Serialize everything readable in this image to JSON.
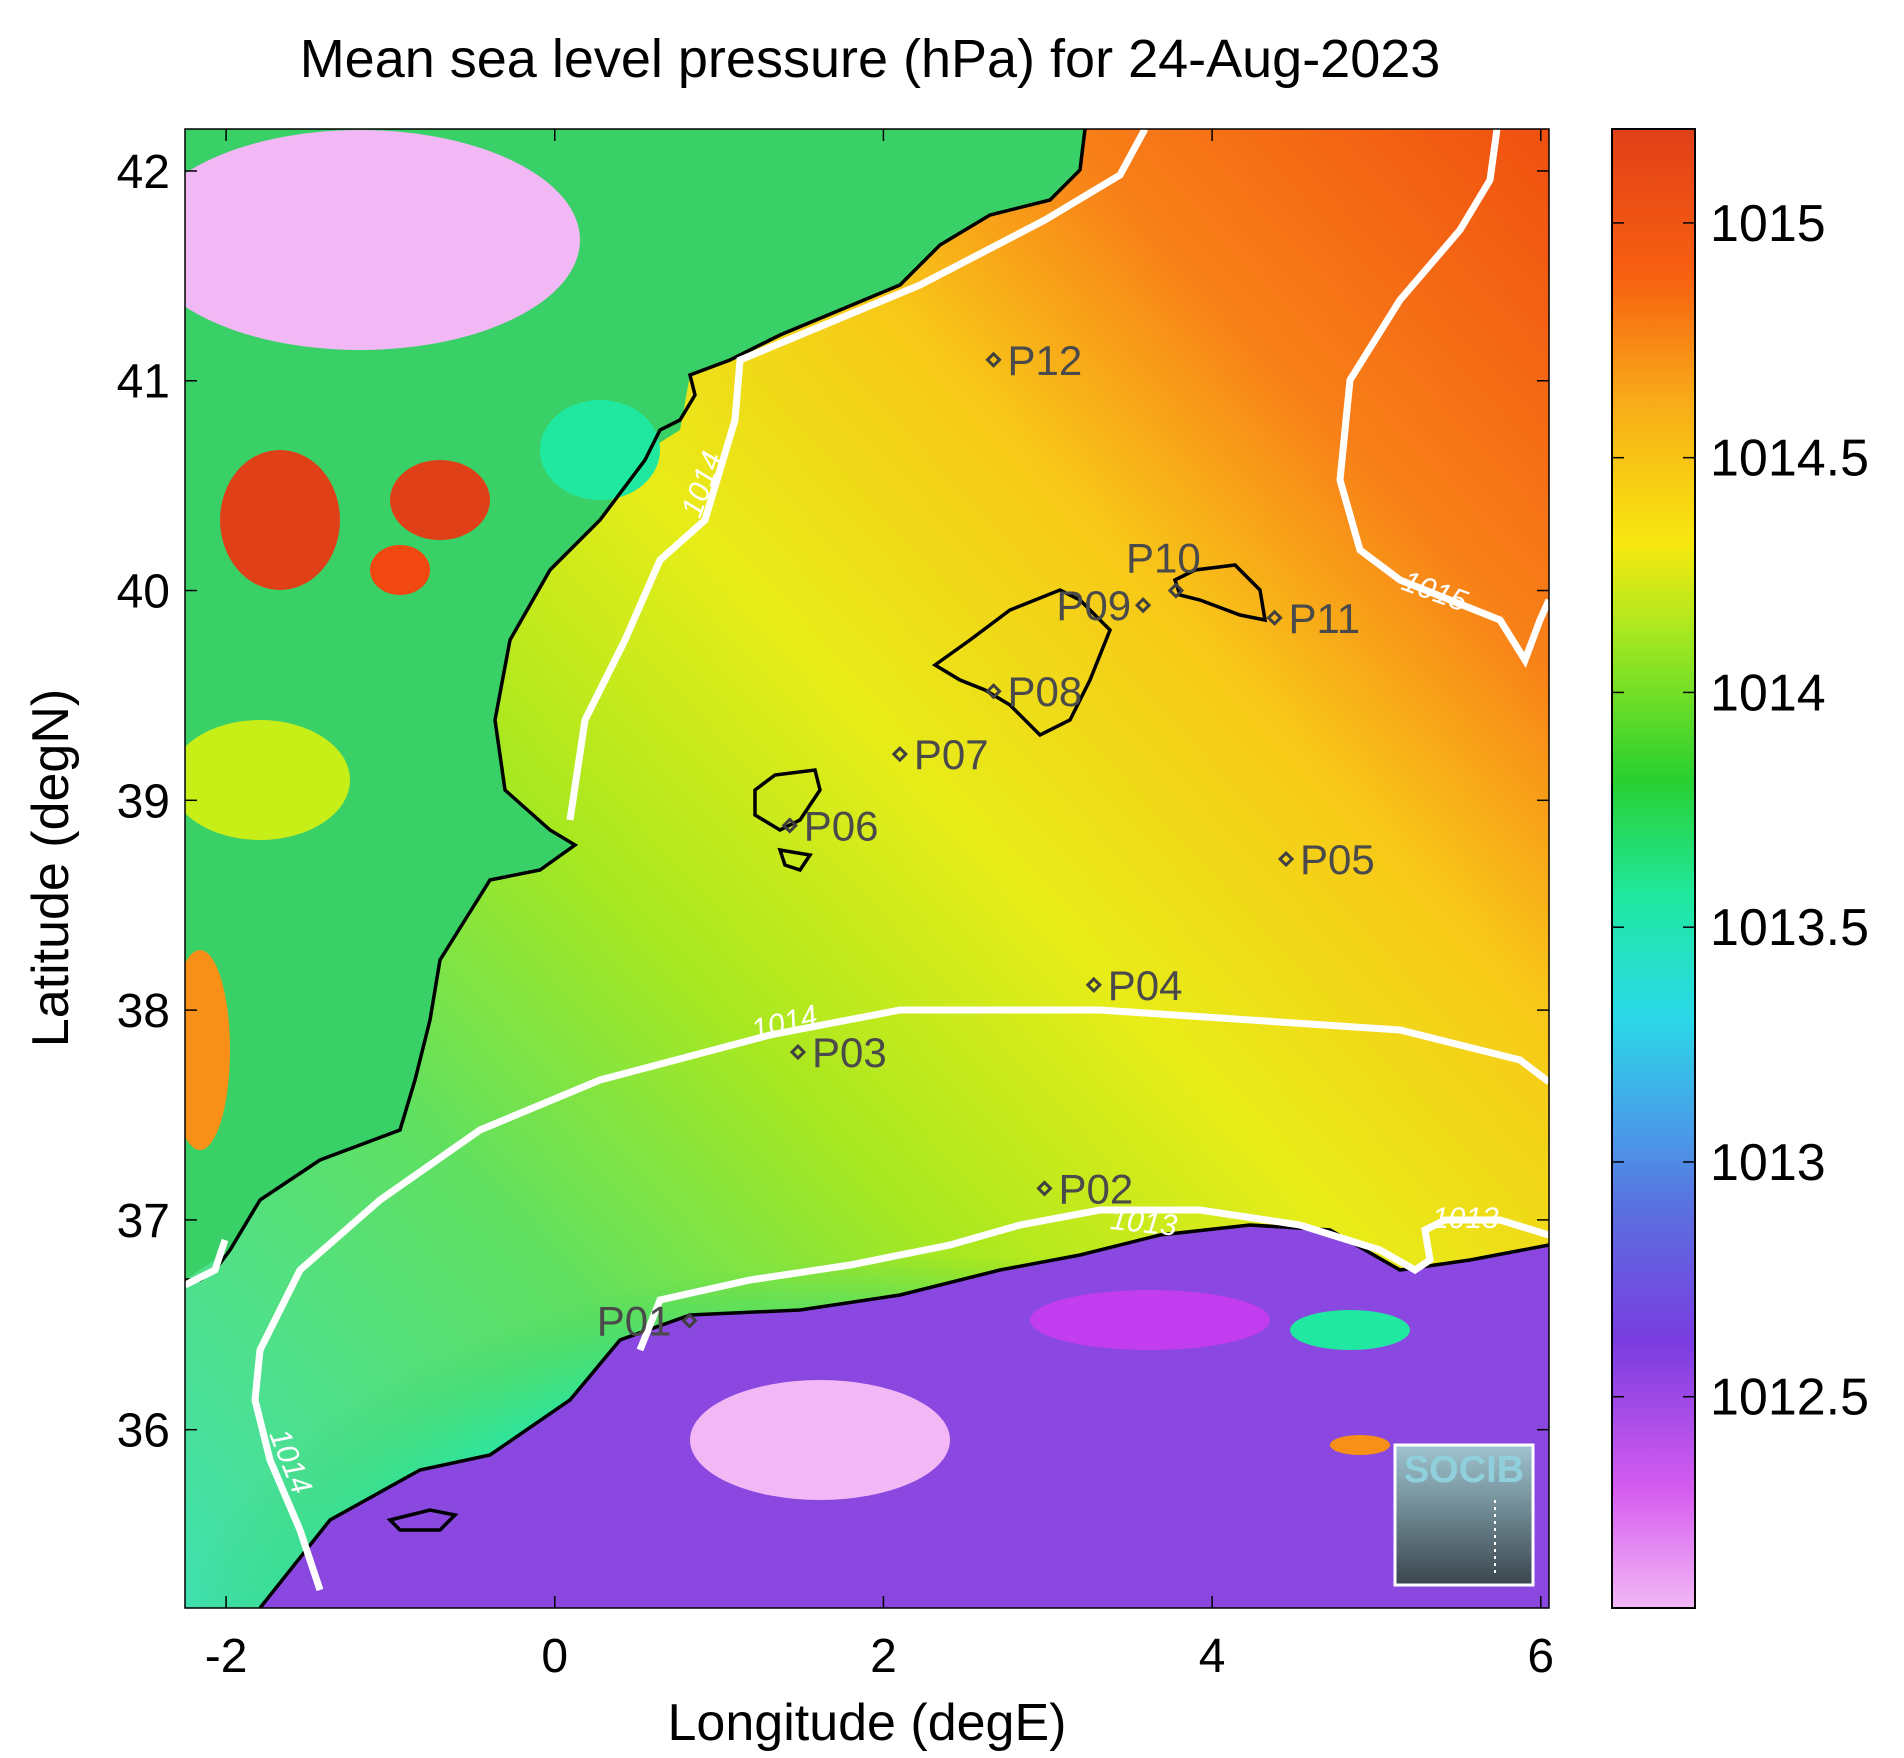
{
  "title": "Mean sea level pressure (hPa) for 24-Aug-2023",
  "chart_data": {
    "type": "heatmap",
    "title": "Mean sea level pressure (hPa) for 24-Aug-2023",
    "xlabel": "Longitude (degE)",
    "ylabel": "Latitude (degN)",
    "xlim": [
      -2.25,
      6.05
    ],
    "ylim": [
      35.15,
      42.2
    ],
    "x_ticks": [
      -2,
      0,
      2,
      4,
      6
    ],
    "x_tick_labels": [
      "-2",
      "0",
      "2",
      "4",
      "6"
    ],
    "y_ticks": [
      36,
      37,
      38,
      39,
      40,
      41,
      42
    ],
    "y_tick_labels": [
      "36",
      "37",
      "38",
      "39",
      "40",
      "41",
      "42"
    ],
    "colorbar": {
      "range": [
        1012.05,
        1015.2
      ],
      "ticks": [
        1012.5,
        1013,
        1013.5,
        1014,
        1014.5,
        1015
      ],
      "tick_labels": [
        "1012.5",
        "1013",
        "1013.5",
        "1014",
        "1014.5",
        "1015"
      ],
      "colors": [
        "#f2b8f5",
        "#c23cf0",
        "#7a3ce0",
        "#4a8ae8",
        "#2ad8e8",
        "#20e8a0",
        "#28d030",
        "#c8ee18",
        "#f8e810",
        "#f89018",
        "#f04810",
        "#e04018"
      ]
    },
    "stations": [
      {
        "name": "P01",
        "lon": 0.82,
        "lat": 36.52
      },
      {
        "name": "P02",
        "lon": 2.98,
        "lat": 37.15
      },
      {
        "name": "P03",
        "lon": 1.48,
        "lat": 37.8
      },
      {
        "name": "P04",
        "lon": 3.28,
        "lat": 38.12
      },
      {
        "name": "P05",
        "lon": 4.45,
        "lat": 38.72
      },
      {
        "name": "P06",
        "lon": 1.43,
        "lat": 38.88
      },
      {
        "name": "P07",
        "lon": 2.1,
        "lat": 39.22
      },
      {
        "name": "P08",
        "lon": 2.67,
        "lat": 39.52
      },
      {
        "name": "P09",
        "lon": 3.58,
        "lat": 39.93
      },
      {
        "name": "P10",
        "lon": 3.78,
        "lat": 40.0
      },
      {
        "name": "P11",
        "lon": 4.38,
        "lat": 39.87
      },
      {
        "name": "P12",
        "lon": 2.67,
        "lat": 41.1
      }
    ],
    "contours": [
      {
        "level": "1013",
        "label": "1013"
      },
      {
        "level": "1014",
        "label": "1014"
      },
      {
        "level": "1015",
        "label": "1015"
      }
    ],
    "grid": false
  },
  "logo": {
    "text": "SOCIB"
  }
}
